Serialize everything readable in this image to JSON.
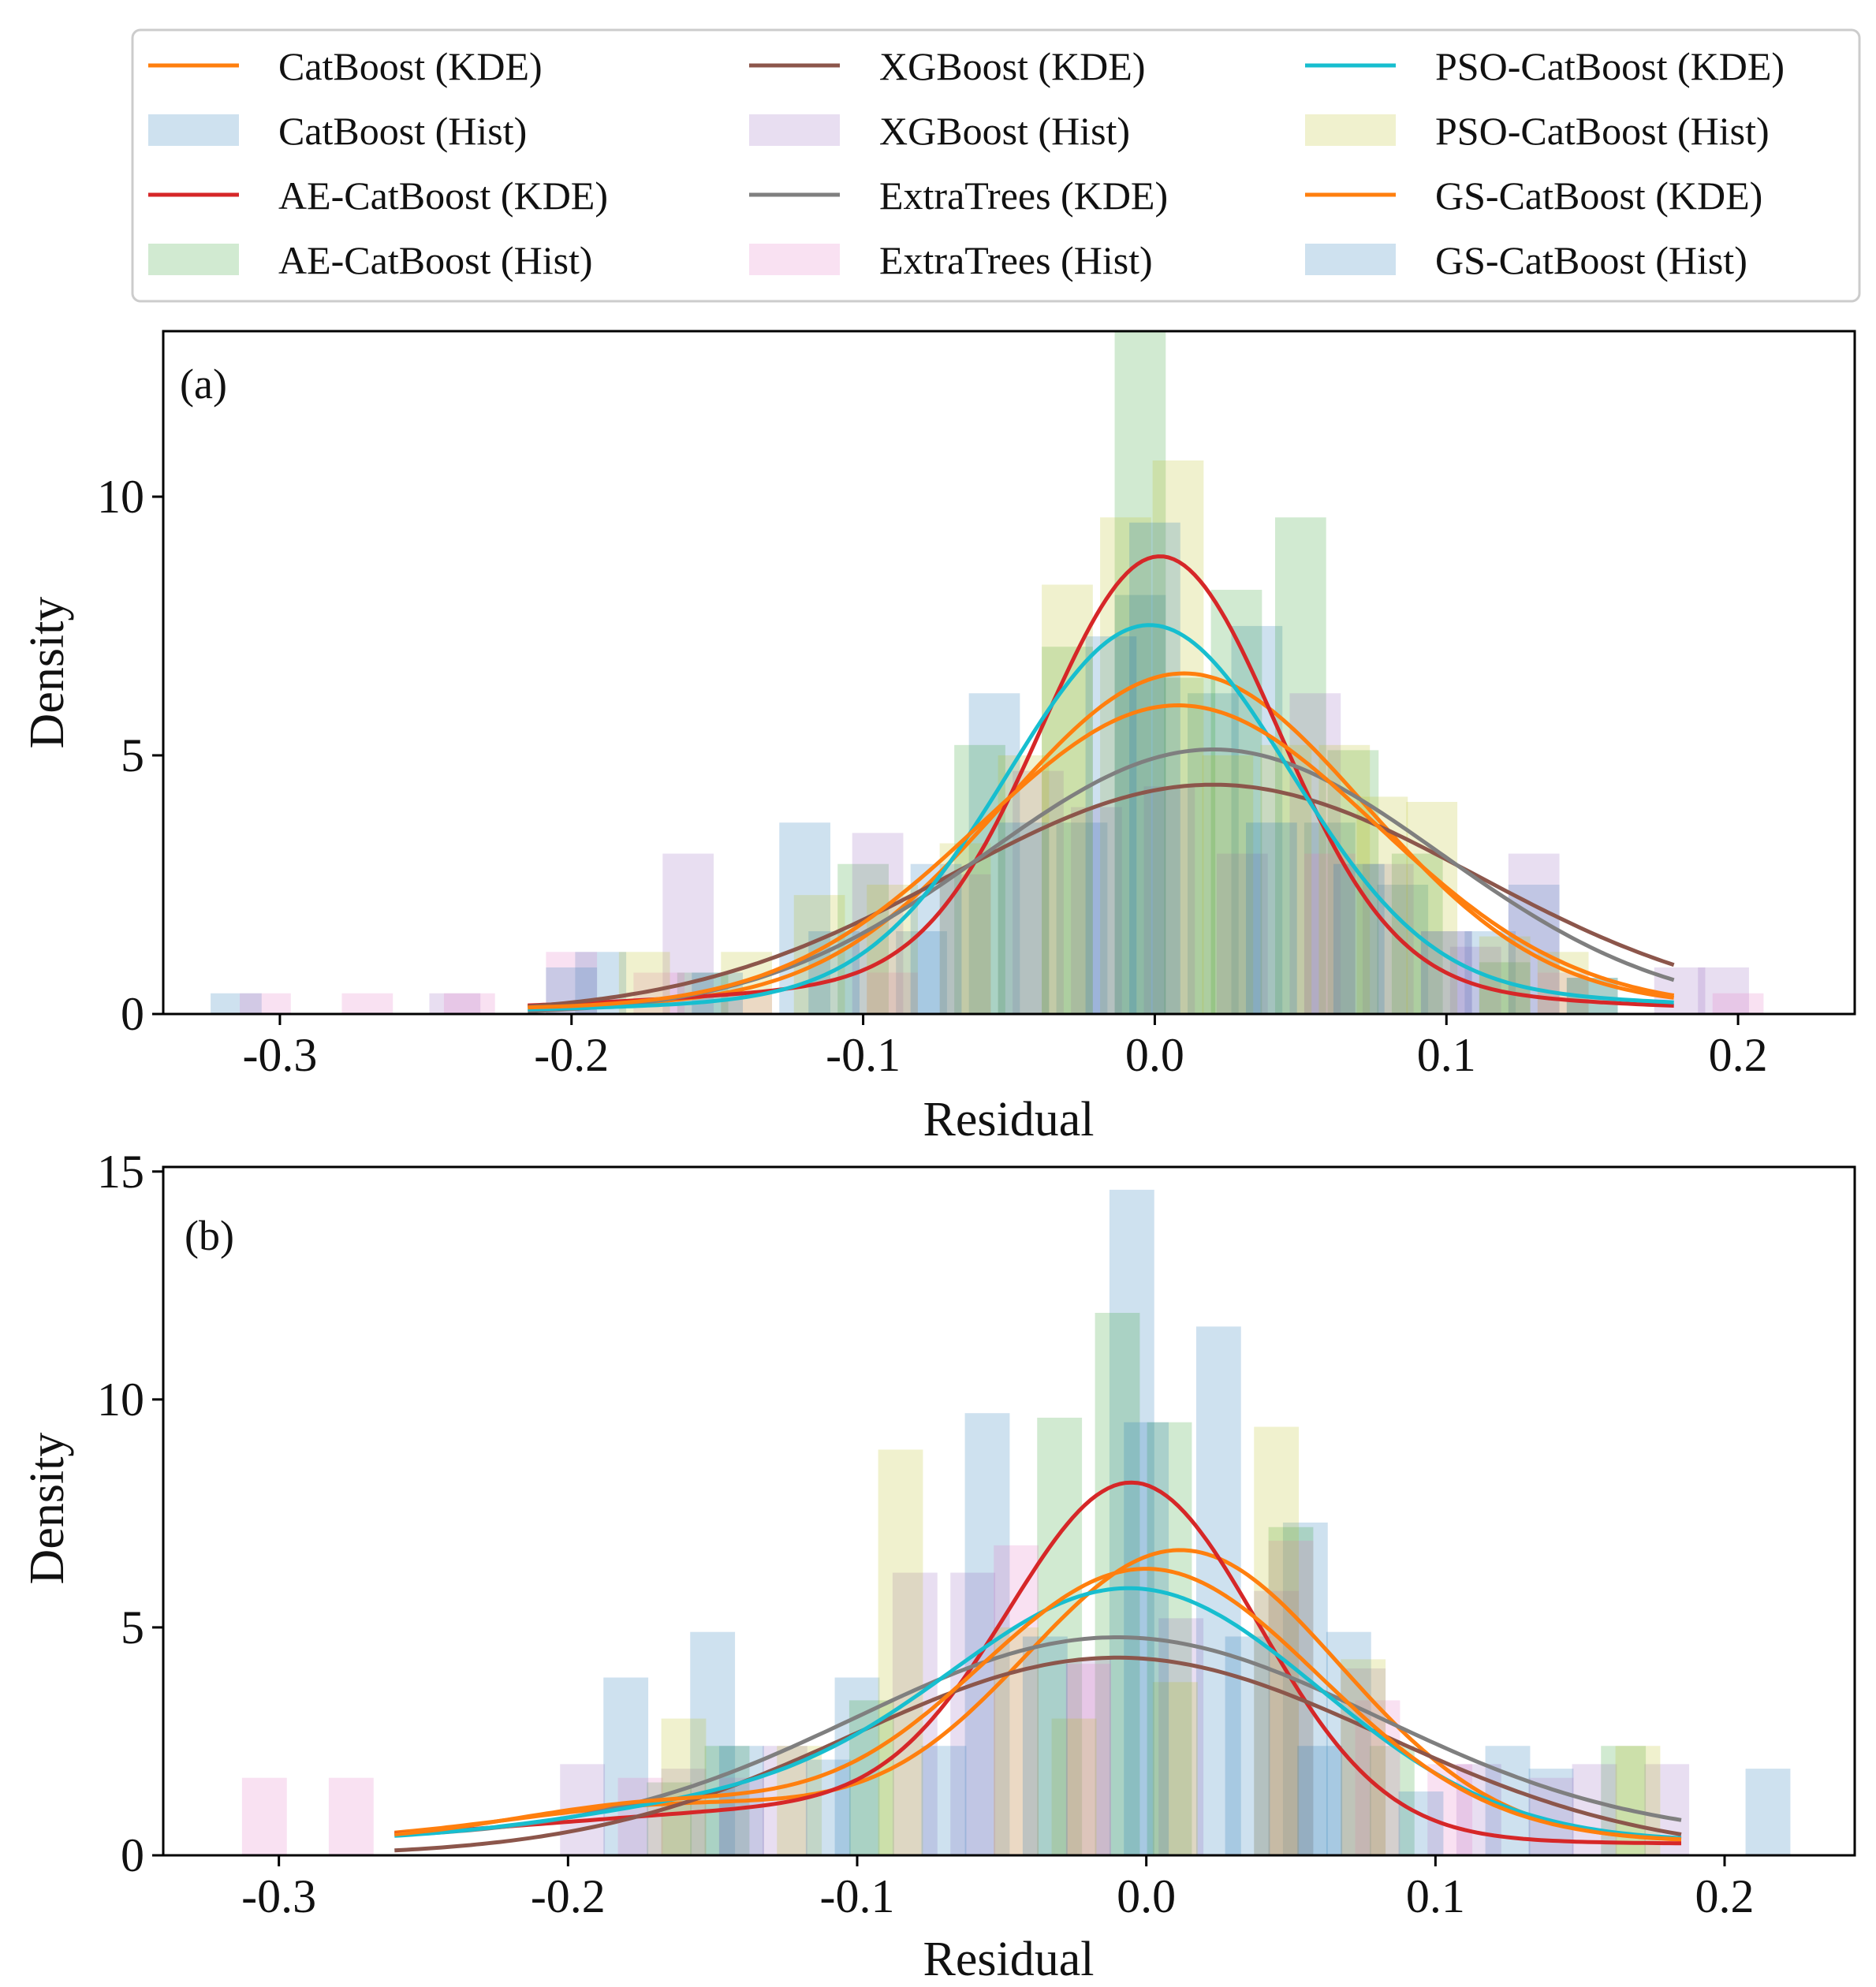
{
  "figure": {
    "legend": [
      {
        "label": "CatBoost (KDE)",
        "kind": "line",
        "color": "#ff7f0e"
      },
      {
        "label": "CatBoost (Hist)",
        "kind": "patch",
        "color": "#1f77b4"
      },
      {
        "label": "AE-CatBoost (KDE)",
        "kind": "line",
        "color": "#d62728"
      },
      {
        "label": "AE-CatBoost (Hist)",
        "kind": "patch",
        "color": "#2ca02c"
      },
      {
        "label": "XGBoost (KDE)",
        "kind": "line",
        "color": "#8c564b"
      },
      {
        "label": "XGBoost (Hist)",
        "kind": "patch",
        "color": "#9467bd"
      },
      {
        "label": "ExtraTrees (KDE)",
        "kind": "line",
        "color": "#7f7f7f"
      },
      {
        "label": "ExtraTrees (Hist)",
        "kind": "patch",
        "color": "#e377c2"
      },
      {
        "label": "PSO-CatBoost (KDE)",
        "kind": "line",
        "color": "#17becf"
      },
      {
        "label": "PSO-CatBoost (Hist)",
        "kind": "patch",
        "color": "#bcbd22"
      },
      {
        "label": "GS-CatBoost (KDE)",
        "kind": "line",
        "color": "#ff7f0e"
      },
      {
        "label": "GS-CatBoost (Hist)",
        "kind": "patch",
        "color": "#1f77b4"
      }
    ]
  },
  "chart_data": [
    {
      "type": "histogram+kde",
      "panel_label": "(a)",
      "xlabel": "Residual",
      "ylabel": "Density",
      "xlim": [
        -0.34,
        0.24
      ],
      "ylim": [
        0,
        13.2
      ],
      "xticks": [
        -0.3,
        -0.2,
        -0.1,
        0.0,
        0.1,
        0.2
      ],
      "xtick_labels": [
        "-0.3",
        "-0.2",
        "-0.1",
        "0.0",
        "0.1",
        "0.2"
      ],
      "yticks": [
        0,
        5,
        10
      ],
      "ytick_labels": [
        "0",
        "5",
        "10"
      ],
      "kde_range": [
        -0.215,
        0.178
      ],
      "kde": [
        {
          "name": "CatBoost (KDE)",
          "color": "#ff7f0e",
          "components": [
            {
              "w": 1.0,
              "mu": 0.01,
              "sd": 0.062
            }
          ],
          "tail": 0.15
        },
        {
          "name": "AE-CatBoost (KDE)",
          "color": "#d62728",
          "components": [
            {
              "w": 0.82,
              "mu": 0.002,
              "sd": 0.04
            },
            {
              "w": 0.18,
              "mu": -0.02,
              "sd": 0.11
            }
          ],
          "tail": 0.03
        },
        {
          "name": "XGBoost (KDE)",
          "color": "#8c564b",
          "components": [
            {
              "w": 1.0,
              "mu": 0.02,
              "sd": 0.09
            }
          ],
          "tail": 0.0
        },
        {
          "name": "ExtraTrees (KDE)",
          "color": "#7f7f7f",
          "components": [
            {
              "w": 1.0,
              "mu": 0.02,
              "sd": 0.078
            }
          ],
          "tail": 0.0
        },
        {
          "name": "PSO-CatBoost (KDE)",
          "color": "#17becf",
          "components": [
            {
              "w": 0.85,
              "mu": -0.002,
              "sd": 0.048
            },
            {
              "w": 0.15,
              "mu": 0.02,
              "sd": 0.13
            }
          ],
          "tail": 0.0
        },
        {
          "name": "GS-CatBoost (KDE)",
          "color": "#ff7f0e",
          "components": [
            {
              "w": 1.0,
              "mu": 0.008,
              "sd": 0.068
            }
          ],
          "tail": 0.1
        }
      ],
      "hist_bin_width": 0.0175,
      "hist": [
        {
          "name": "CatBoost (Hist)",
          "color": "#1f77b4",
          "bins": [
            [
              -0.315,
              0.4
            ],
            [
              -0.19,
              1.2
            ],
            [
              -0.12,
              3.7
            ],
            [
              -0.08,
              1.6
            ],
            [
              -0.055,
              6.2
            ],
            [
              -0.025,
              3.7
            ],
            [
              -0.005,
              8.1
            ],
            [
              0.02,
              6.2
            ],
            [
              0.035,
              7.5
            ],
            [
              0.06,
              3.7
            ],
            [
              0.085,
              2.5
            ],
            [
              0.115,
              1.6
            ],
            [
              0.13,
              2.5
            ]
          ]
        },
        {
          "name": "AE-CatBoost (Hist)",
          "color": "#2ca02c",
          "bins": [
            [
              -0.155,
              0.8
            ],
            [
              -0.1,
              2.9
            ],
            [
              -0.06,
              5.2
            ],
            [
              -0.03,
              7.1
            ],
            [
              -0.005,
              13.2
            ],
            [
              0.012,
              6.5
            ],
            [
              0.028,
              8.2
            ],
            [
              0.05,
              9.6
            ],
            [
              0.068,
              5.1
            ],
            [
              0.09,
              3.1
            ],
            [
              0.12,
              1.0
            ],
            [
              0.15,
              0.7
            ]
          ]
        },
        {
          "name": "XGBoost (Hist)",
          "color": "#9467bd",
          "bins": [
            [
              -0.24,
              0.4
            ],
            [
              -0.16,
              3.1
            ],
            [
              -0.095,
              3.5
            ],
            [
              -0.065,
              2.7
            ],
            [
              -0.04,
              4.7
            ],
            [
              -0.02,
              4.0
            ],
            [
              0.005,
              4.4
            ],
            [
              0.03,
              3.1
            ],
            [
              0.055,
              6.2
            ],
            [
              0.08,
              2.9
            ],
            [
              0.11,
              1.3
            ],
            [
              0.13,
              3.1
            ],
            [
              0.18,
              0.9
            ],
            [
              0.195,
              0.9
            ]
          ]
        },
        {
          "name": "ExtraTrees (Hist)",
          "color": "#e377c2",
          "bins": [
            [
              -0.305,
              0.4
            ],
            [
              -0.27,
              0.4
            ],
            [
              -0.235,
              0.4
            ],
            [
              -0.2,
              1.2
            ],
            [
              -0.17,
              0.8
            ],
            [
              -0.14,
              0.4
            ],
            [
              -0.09,
              0.8
            ],
            [
              0.06,
              3.1
            ],
            [
              0.1,
              1.6
            ],
            [
              0.14,
              0.8
            ],
            [
              0.2,
              0.4
            ]
          ]
        },
        {
          "name": "PSO-CatBoost (Hist)",
          "color": "#bcbd22",
          "bins": [
            [
              -0.175,
              1.2
            ],
            [
              -0.14,
              1.2
            ],
            [
              -0.115,
              2.3
            ],
            [
              -0.09,
              2.5
            ],
            [
              -0.065,
              3.3
            ],
            [
              -0.045,
              5.0
            ],
            [
              -0.03,
              8.3
            ],
            [
              -0.01,
              9.6
            ],
            [
              0.008,
              10.7
            ],
            [
              0.025,
              5.0
            ],
            [
              0.045,
              5.2
            ],
            [
              0.065,
              5.2
            ],
            [
              0.078,
              4.2
            ],
            [
              0.095,
              4.1
            ],
            [
              0.12,
              1.5
            ],
            [
              0.14,
              1.2
            ]
          ]
        },
        {
          "name": "GS-CatBoost (Hist)",
          "color": "#1f77b4",
          "bins": [
            [
              -0.2,
              0.9
            ],
            [
              -0.15,
              0.8
            ],
            [
              -0.11,
              1.6
            ],
            [
              -0.075,
              2.9
            ],
            [
              -0.045,
              3.7
            ],
            [
              -0.015,
              7.3
            ],
            [
              0.0,
              9.5
            ],
            [
              0.04,
              3.7
            ],
            [
              0.07,
              2.9
            ],
            [
              0.1,
              1.6
            ],
            [
              0.15,
              0.7
            ]
          ]
        }
      ]
    },
    {
      "type": "histogram+kde",
      "panel_label": "(b)",
      "xlabel": "Residual",
      "ylabel": "Density",
      "xlim": [
        -0.34,
        0.245
      ],
      "ylim": [
        0,
        15.1
      ],
      "xticks": [
        -0.3,
        -0.2,
        -0.1,
        0.0,
        0.1,
        0.2
      ],
      "xtick_labels": [
        "-0.3",
        "-0.2",
        "-0.1",
        "0.0",
        "0.1",
        "0.2"
      ],
      "yticks": [
        0,
        5,
        10,
        15
      ],
      "ytick_labels": [
        "0",
        "5",
        "10",
        "15"
      ],
      "kde_range": [
        -0.26,
        0.185
      ],
      "kde": [
        {
          "name": "CatBoost (KDE)",
          "color": "#ff7f0e",
          "components": [
            {
              "w": 0.88,
              "mu": 0.012,
              "sd": 0.055
            },
            {
              "w": 0.12,
              "mu": -0.16,
              "sd": 0.06
            }
          ],
          "tail": 0.3
        },
        {
          "name": "AE-CatBoost (KDE)",
          "color": "#d62728",
          "components": [
            {
              "w": 0.8,
              "mu": -0.004,
              "sd": 0.043
            },
            {
              "w": 0.2,
              "mu": -0.1,
              "sd": 0.1
            }
          ],
          "tail": 0.25
        },
        {
          "name": "XGBoost (KDE)",
          "color": "#8c564b",
          "components": [
            {
              "w": 1.0,
              "mu": -0.01,
              "sd": 0.092
            }
          ],
          "tail": 0.0
        },
        {
          "name": "ExtraTrees (KDE)",
          "color": "#7f7f7f",
          "components": [
            {
              "w": 1.0,
              "mu": -0.01,
              "sd": 0.09
            }
          ],
          "tail": 0.35
        },
        {
          "name": "PSO-CatBoost (KDE)",
          "color": "#17becf",
          "components": [
            {
              "w": 0.9,
              "mu": -0.005,
              "sd": 0.065
            },
            {
              "w": 0.1,
              "mu": -0.15,
              "sd": 0.06
            }
          ],
          "tail": 0.3
        },
        {
          "name": "GS-CatBoost (KDE)",
          "color": "#ff7f0e",
          "components": [
            {
              "w": 0.9,
              "mu": 0.0,
              "sd": 0.06
            },
            {
              "w": 0.1,
              "mu": -0.17,
              "sd": 0.05
            }
          ],
          "tail": 0.3
        }
      ],
      "hist_bin_width": 0.0155,
      "hist": [
        {
          "name": "CatBoost (Hist)",
          "color": "#1f77b4",
          "bins": [
            [
              -0.18,
              3.9
            ],
            [
              -0.15,
              4.9
            ],
            [
              -0.1,
              3.9
            ],
            [
              -0.055,
              9.7
            ],
            [
              -0.005,
              14.6
            ],
            [
              0.025,
              11.6
            ],
            [
              0.055,
              7.3
            ],
            [
              0.07,
              4.9
            ],
            [
              0.125,
              2.4
            ],
            [
              0.215,
              1.9
            ]
          ]
        },
        {
          "name": "AE-CatBoost (Hist)",
          "color": "#2ca02c",
          "bins": [
            [
              -0.165,
              1.6
            ],
            [
              -0.145,
              2.4
            ],
            [
              -0.095,
              3.4
            ],
            [
              -0.03,
              9.6
            ],
            [
              -0.01,
              11.9
            ],
            [
              0.008,
              9.5
            ],
            [
              0.05,
              7.2
            ],
            [
              0.085,
              2.4
            ],
            [
              0.165,
              2.4
            ]
          ]
        },
        {
          "name": "XGBoost (Hist)",
          "color": "#9467bd",
          "bins": [
            [
              -0.195,
              2.0
            ],
            [
              -0.16,
              1.9
            ],
            [
              -0.125,
              2.4
            ],
            [
              -0.08,
              6.2
            ],
            [
              -0.06,
              6.2
            ],
            [
              -0.02,
              4.3
            ],
            [
              0.012,
              5.2
            ],
            [
              0.045,
              5.8
            ],
            [
              0.075,
              4.1
            ],
            [
              0.115,
              2.0
            ],
            [
              0.155,
              2.0
            ],
            [
              0.18,
              2.0
            ]
          ]
        },
        {
          "name": "ExtraTrees (Hist)",
          "color": "#e377c2",
          "bins": [
            [
              -0.305,
              1.7
            ],
            [
              -0.275,
              1.7
            ],
            [
              -0.175,
              1.7
            ],
            [
              -0.14,
              1.7
            ],
            [
              -0.045,
              6.8
            ],
            [
              -0.02,
              4.2
            ],
            [
              0.05,
              6.9
            ],
            [
              0.08,
              3.4
            ],
            [
              0.105,
              2.0
            ],
            [
              0.14,
              1.7
            ]
          ]
        },
        {
          "name": "PSO-CatBoost (Hist)",
          "color": "#bcbd22",
          "bins": [
            [
              -0.16,
              3.0
            ],
            [
              -0.12,
              2.4
            ],
            [
              -0.085,
              8.9
            ],
            [
              -0.045,
              5.0
            ],
            [
              -0.025,
              3.0
            ],
            [
              0.01,
              3.8
            ],
            [
              0.045,
              9.4
            ],
            [
              0.075,
              4.3
            ],
            [
              0.17,
              2.4
            ]
          ]
        },
        {
          "name": "GS-CatBoost (Hist)",
          "color": "#1f77b4",
          "bins": [
            [
              -0.14,
              2.4
            ],
            [
              -0.11,
              2.1
            ],
            [
              -0.07,
              2.4
            ],
            [
              -0.035,
              4.8
            ],
            [
              0.0,
              9.5
            ],
            [
              0.035,
              4.8
            ],
            [
              0.06,
              2.4
            ],
            [
              0.095,
              1.4
            ],
            [
              0.14,
              1.9
            ]
          ]
        }
      ]
    }
  ]
}
